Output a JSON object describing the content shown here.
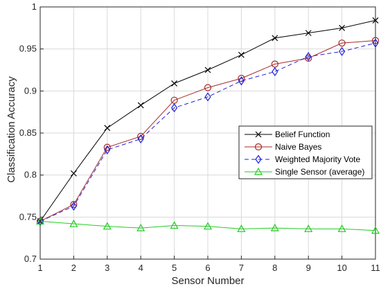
{
  "chart_data": {
    "type": "line",
    "title": "",
    "xlabel": "Sensor Number",
    "ylabel": "Classification Accuracy",
    "xlim": [
      1,
      11
    ],
    "ylim": [
      0.7,
      1
    ],
    "x_ticks": [
      1,
      2,
      3,
      4,
      5,
      6,
      7,
      8,
      9,
      10,
      11
    ],
    "y_ticks": [
      0.7,
      0.75,
      0.8,
      0.85,
      0.9,
      0.95,
      1
    ],
    "y_tick_labels": [
      "0.7",
      "0.75",
      "0.8",
      "0.85",
      "0.9",
      "0.95",
      "1"
    ],
    "grid": true,
    "legend_position": "right",
    "x": [
      1,
      2,
      3,
      4,
      5,
      6,
      7,
      8,
      9,
      10,
      11
    ],
    "series": [
      {
        "name": "Belief Function",
        "color": "#000000",
        "marker": "x",
        "dash": "solid",
        "values": [
          0.745,
          0.802,
          0.856,
          0.883,
          0.909,
          0.925,
          0.943,
          0.963,
          0.969,
          0.975,
          0.984
        ]
      },
      {
        "name": "Naive Bayes",
        "color": "#a52a2a",
        "marker": "circle",
        "dash": "solid",
        "values": [
          0.745,
          0.765,
          0.833,
          0.846,
          0.889,
          0.904,
          0.915,
          0.932,
          0.939,
          0.957,
          0.96
        ]
      },
      {
        "name": "Weighted Majority Vote",
        "color": "#1f1fd8",
        "marker": "diamond",
        "dash": "dashed",
        "values": [
          0.745,
          0.763,
          0.83,
          0.843,
          0.88,
          0.893,
          0.912,
          0.923,
          0.941,
          0.947,
          0.957
        ]
      },
      {
        "name": "Single Sensor (average)",
        "color": "#22cc22",
        "marker": "triangle",
        "dash": "solid",
        "values": [
          0.745,
          0.742,
          0.739,
          0.737,
          0.74,
          0.739,
          0.736,
          0.737,
          0.736,
          0.736,
          0.734
        ]
      }
    ]
  }
}
